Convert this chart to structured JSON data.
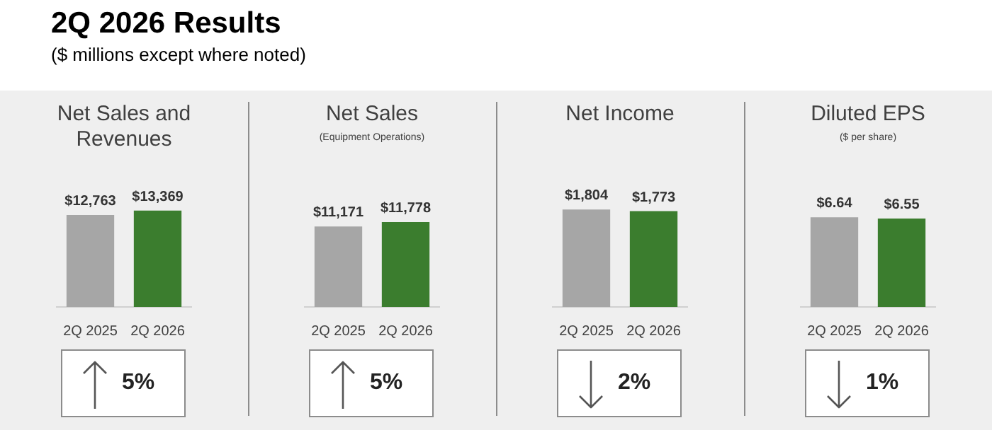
{
  "chart_data": [
    {
      "type": "bar",
      "title": "Net Sales and Revenues",
      "categories": [
        "2Q 2025",
        "2Q 2026"
      ],
      "values": [
        12763,
        13369
      ],
      "colors": [
        "#a6a6a6",
        "#3b7d2e"
      ],
      "value_labels": [
        "$12,763",
        "$13,369"
      ],
      "annotations": [
        "2Q 2026 Results",
        "($ millions except where noted)",
        "5%"
      ]
    },
    {
      "type": "bar",
      "title": "Net Sales",
      "subtitle": "(Equipment Operations)",
      "categories": [
        "2Q 2025",
        "2Q 2026"
      ],
      "values": [
        11171,
        11778
      ],
      "colors": [
        "#a6a6a6",
        "#3b7d2e"
      ],
      "value_labels": [
        "$11,171",
        "$11,778"
      ],
      "annotations": [
        "5%"
      ]
    },
    {
      "type": "bar",
      "title": "Net Income",
      "categories": [
        "2Q 2025",
        "2Q 2026"
      ],
      "values": [
        1804,
        1773
      ],
      "colors": [
        "#a6a6a6",
        "#3b7d2e"
      ],
      "value_labels": [
        "$1,804",
        "$1,773"
      ],
      "annotations": [
        "2%"
      ]
    },
    {
      "type": "bar",
      "title": "Diluted EPS",
      "subtitle": "($ per share)",
      "categories": [
        "2Q 2025",
        "2Q 2026"
      ],
      "values": [
        6.64,
        6.55
      ],
      "colors": [
        "#a6a6a6",
        "#3b7d2e"
      ],
      "value_labels": [
        "$6.64",
        "$6.55"
      ],
      "annotations": [
        "1%"
      ]
    }
  ]
}
